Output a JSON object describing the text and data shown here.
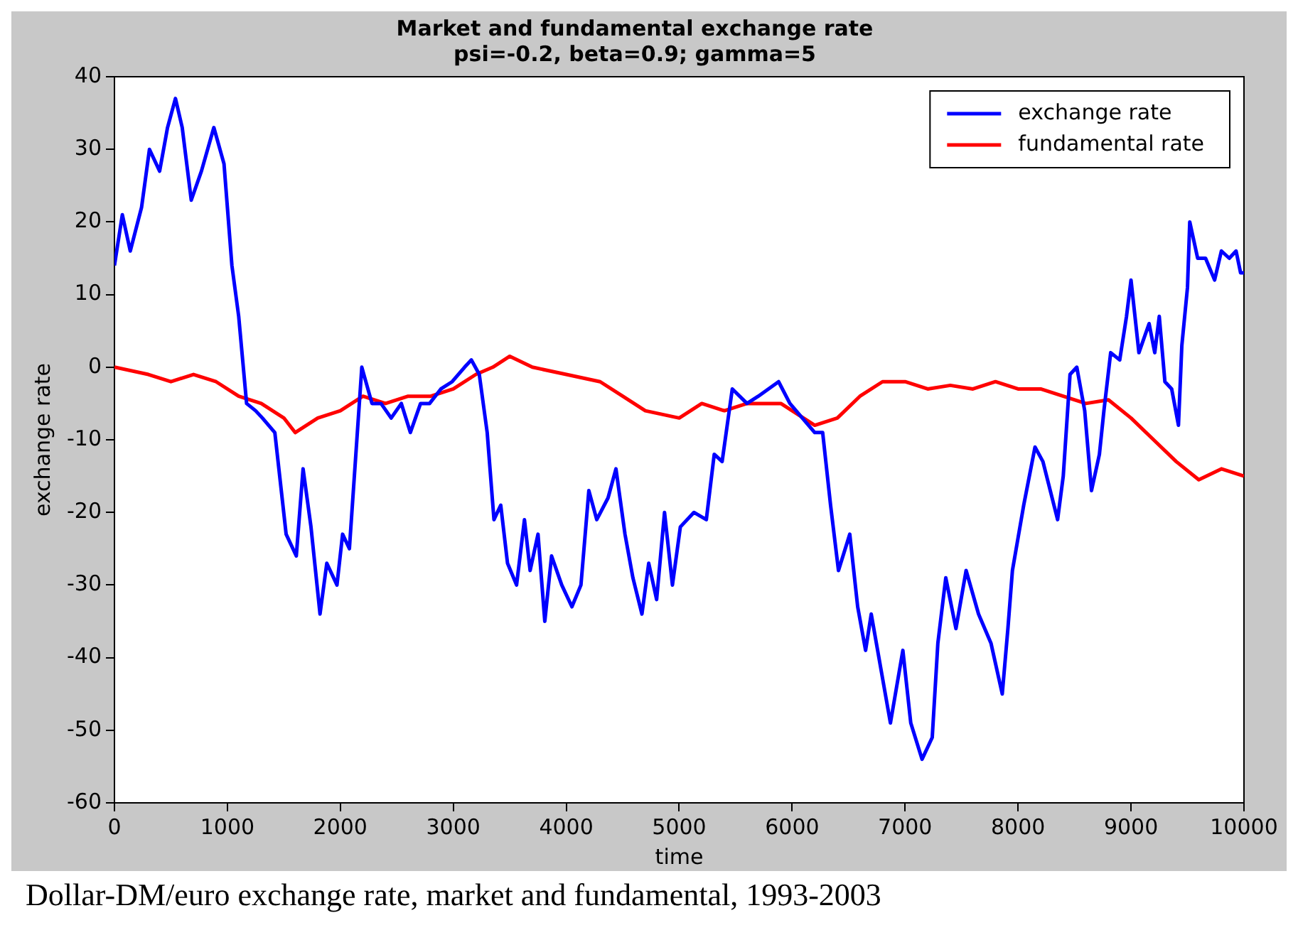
{
  "chart_data": {
    "type": "line",
    "title": "Market and fundamental exchange rate",
    "subtitle": "psi=-0.2, beta=0.9; gamma=5",
    "xlabel": "time",
    "ylabel": "exchange rate",
    "annotations": [
      "Dollar-DM/euro exchange rate, market and fundamental, 1993-2003"
    ],
    "xlim": [
      0,
      10000
    ],
    "xticks": [
      0,
      1000,
      2000,
      3000,
      4000,
      5000,
      6000,
      7000,
      8000,
      9000,
      10000
    ],
    "ylim": [
      -60,
      40
    ],
    "yticks": [
      -60,
      -50,
      -40,
      -30,
      -20,
      -10,
      0,
      10,
      20,
      30,
      40
    ],
    "grid": false,
    "legend": "top right",
    "marker": "none",
    "line_style": "solid",
    "series": [
      {
        "name": "exchange rate",
        "color": "#0000ff",
        "x": [
          0,
          70,
          140,
          240,
          310,
          400,
          470,
          540,
          600,
          680,
          770,
          880,
          970,
          1040,
          1100,
          1170,
          1250,
          1310,
          1420,
          1520,
          1610,
          1670,
          1740,
          1820,
          1880,
          1970,
          2020,
          2080,
          2190,
          2280,
          2360,
          2450,
          2540,
          2620,
          2710,
          2790,
          2890,
          2990,
          3100,
          3160,
          3230,
          3300,
          3360,
          3420,
          3480,
          3560,
          3630,
          3680,
          3750,
          3810,
          3870,
          3960,
          4050,
          4130,
          4200,
          4270,
          4370,
          4440,
          4520,
          4590,
          4670,
          4730,
          4800,
          4870,
          4940,
          5010,
          5130,
          5240,
          5310,
          5380,
          5470,
          5600,
          5700,
          5880,
          5980,
          6200,
          6270,
          6340,
          6410,
          6510,
          6580,
          6650,
          6700,
          6870,
          6980,
          7050,
          7150,
          7240,
          7290,
          7360,
          7450,
          7540,
          7650,
          7760,
          7860,
          7910,
          7950,
          8050,
          8150,
          8220,
          8350,
          8400,
          8460,
          8520,
          8590,
          8650,
          8720,
          8760,
          8820,
          8900,
          8960,
          9000,
          9070,
          9160,
          9210,
          9250,
          9300,
          9360,
          9420,
          9450,
          9500,
          9520,
          9590,
          9660,
          9740,
          9800,
          9870,
          9930,
          9970,
          10000
        ],
        "values": [
          14,
          21,
          16,
          22,
          30,
          27,
          33,
          37,
          33,
          23,
          27,
          33,
          28,
          14,
          7,
          -5,
          -6,
          -7,
          -9,
          -23,
          -26,
          -14,
          -22,
          -34,
          -27,
          -30,
          -23,
          -25,
          0,
          -5,
          -5,
          -7,
          -5,
          -9,
          -5,
          -5,
          -3,
          -2,
          0,
          1,
          -1,
          -9,
          -21,
          -19,
          -27,
          -30,
          -21,
          -28,
          -23,
          -35,
          -26,
          -30,
          -33,
          -30,
          -17,
          -21,
          -18,
          -14,
          -23,
          -29,
          -34,
          -27,
          -32,
          -20,
          -30,
          -22,
          -20,
          -21,
          -12,
          -13,
          -3,
          -5,
          -4,
          -2,
          -5,
          -9,
          -9,
          -19,
          -28,
          -23,
          -33,
          -39,
          -34,
          -49,
          -39,
          -49,
          -54,
          -51,
          -38,
          -29,
          -36,
          -28,
          -34,
          -38,
          -45,
          -36,
          -28,
          -19,
          -11,
          -13,
          -21,
          -15,
          -1,
          0,
          -6,
          -17,
          -12,
          -6,
          2,
          1,
          7,
          12,
          2,
          6,
          2,
          7,
          -2,
          -3,
          -8,
          3,
          11,
          20,
          15,
          15,
          12,
          16,
          15,
          16,
          13,
          13
        ]
      },
      {
        "name": "fundamental rate",
        "color": "#ff0000",
        "x": [
          0,
          300,
          500,
          700,
          900,
          1100,
          1300,
          1500,
          1600,
          1800,
          2000,
          2200,
          2400,
          2600,
          2800,
          3000,
          3200,
          3350,
          3500,
          3700,
          4000,
          4300,
          4500,
          4700,
          5000,
          5200,
          5400,
          5600,
          5900,
          6000,
          6200,
          6400,
          6600,
          6800,
          7000,
          7200,
          7400,
          7600,
          7800,
          8000,
          8200,
          8400,
          8600,
          8800,
          9000,
          9200,
          9400,
          9600,
          9800,
          10000
        ],
        "values": [
          0,
          -1,
          -2,
          -1,
          -2,
          -4,
          -5,
          -7,
          -9,
          -7,
          -6,
          -4,
          -5,
          -4,
          -4,
          -3,
          -1,
          0,
          1.5,
          0,
          -1,
          -2,
          -4,
          -6,
          -7,
          -5,
          -6,
          -5,
          -5,
          -6,
          -8,
          -7,
          -4,
          -2,
          -2,
          -3,
          -2.5,
          -3,
          -2,
          -3,
          -3,
          -4,
          -5,
          -4.5,
          -7,
          -10,
          -13,
          -15.5,
          -14,
          -15
        ]
      }
    ]
  }
}
